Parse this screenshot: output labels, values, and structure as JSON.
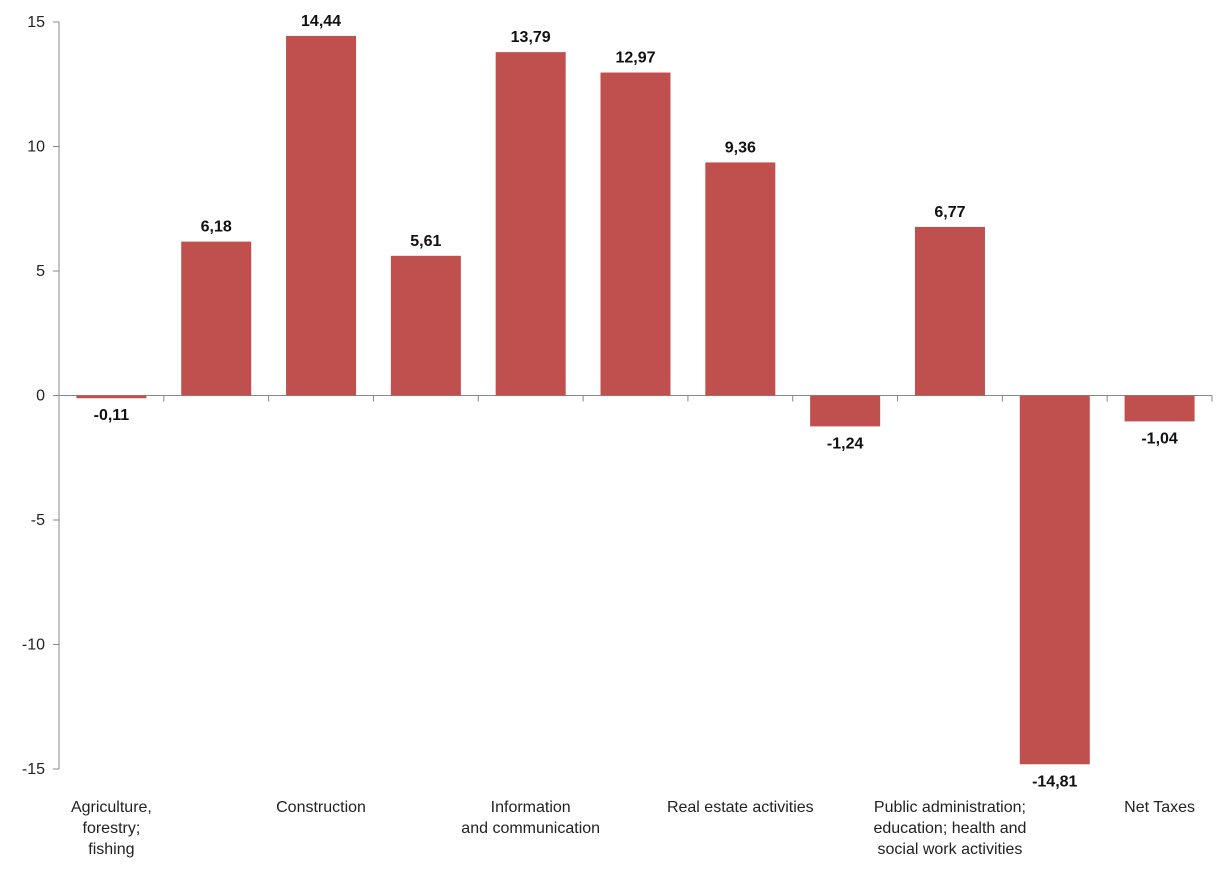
{
  "chart_data": {
    "type": "bar",
    "categories": [
      "Agriculture, forestry; fishing",
      "",
      "Construction",
      "",
      "Information and communication",
      "",
      "Real estate activities",
      "",
      "Public administration; education; health and social work activities",
      "",
      "Net Taxes"
    ],
    "category_label_lines": [
      [
        "Agriculture,",
        "forestry;",
        "fishing"
      ],
      [],
      [
        "Construction"
      ],
      [],
      [
        "Information",
        "and communication"
      ],
      [],
      [
        "Real estate activities"
      ],
      [],
      [
        "Public administration;",
        "education; health and",
        "social work activities"
      ],
      [],
      [
        "Net Taxes"
      ]
    ],
    "values": [
      -0.11,
      6.18,
      14.44,
      5.61,
      13.79,
      12.97,
      9.36,
      -1.24,
      6.77,
      -14.81,
      -1.04
    ],
    "value_labels": [
      "-0,11",
      "6,18",
      "14,44",
      "5,61",
      "13,79",
      "12,97",
      "9,36",
      "-1,24",
      "6,77",
      "-14,81",
      "-1,04"
    ],
    "y_ticks": [
      15,
      10,
      5,
      0,
      -5,
      -10,
      -15
    ],
    "y_tick_labels": [
      "15",
      "10",
      "5",
      "0",
      "-5",
      "-10",
      "-15"
    ],
    "ylim": [
      -15,
      15
    ],
    "title": "",
    "xlabel": "",
    "ylabel": "",
    "grid": false,
    "legend": "none",
    "bar_color": "#C0504D"
  }
}
